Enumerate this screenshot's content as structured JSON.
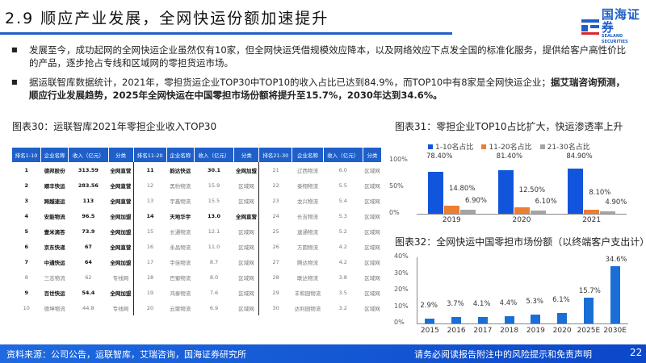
{
  "header": {
    "title": "2.9 顺应产业发展，全网快运份额加速提升",
    "logo_cn": "国海证券",
    "logo_en": "SEALAND SECURITIES",
    "accent_color": "#1f5fc9"
  },
  "bullets": [
    {
      "text": "发展至今，成功起网的全网快运企业虽然仅有10家，但全网快运凭借规模效应降本，以及网络效应下点发全国的标准化服务，提供给客户高性价比的产品，逐步抢占专线和区域网的零担货运市场。",
      "bold": ""
    },
    {
      "text": "据运联智库数据统计，2021年，零担货运企业TOP30中TOP10的收入占比已达到84.9%，而TOP10中有8家是全网快运企业；",
      "bold": "据艾瑞咨询预测，顺应行业发展趋势，2025年全网快运在中国零担市场份额将提升至15.7%，2030年达到34.6%。"
    }
  ],
  "table_caption": "图表30：运联智库2021年零担企业收入TOP30",
  "table": {
    "headers": [
      "排名1-10",
      "企业名称",
      "收入（亿元）",
      "分类",
      "排名11-20",
      "企业名称",
      "收入（亿元）",
      "分类",
      "排名21-30",
      "企业名称",
      "收入（亿元）",
      "分类"
    ],
    "rows": [
      [
        [
          "1",
          "德邦股份",
          "313.59",
          "全网直营"
        ],
        [
          "11",
          "韵达快运",
          "30.1",
          "全网加盟"
        ],
        [
          "21",
          "辽西物流",
          "6.0",
          "区域网"
        ]
      ],
      [
        [
          "2",
          "顺丰快运",
          "283.56",
          "全网直营"
        ],
        [
          "12",
          "黑豹物流",
          "15.9",
          "区域网"
        ],
        [
          "22",
          "泰翔物流",
          "5.5",
          "区域网"
        ]
      ],
      [
        [
          "3",
          "跨越速运",
          "113",
          "全网直营"
        ],
        [
          "13",
          "宇鑫物流",
          "15.5",
          "区域网"
        ],
        [
          "23",
          "龙兴物流",
          "5.4",
          "区域网"
        ]
      ],
      [
        [
          "4",
          "安能物流",
          "96.5",
          "全网加盟"
        ],
        [
          "14",
          "天地华宇",
          "13.0",
          "全网直营"
        ],
        [
          "24",
          "长吉物流",
          "5.3",
          "区域网"
        ]
      ],
      [
        [
          "5",
          "壹米滴答",
          "73.9",
          "全网加盟"
        ],
        [
          "15",
          "长通物流",
          "12.1",
          "区域网"
        ],
        [
          "25",
          "速通物流",
          "5.2",
          "区域网"
        ]
      ],
      [
        [
          "6",
          "京东快递",
          "67",
          "全网直营"
        ],
        [
          "16",
          "永昌物流",
          "11.0",
          "区域网"
        ],
        [
          "26",
          "方圆物流",
          "4.2",
          "区域网"
        ]
      ],
      [
        [
          "7",
          "中通快运",
          "64",
          "全网加盟"
        ],
        [
          "17",
          "宇佳物流",
          "8.7",
          "区域网"
        ],
        [
          "27",
          "腾达物流",
          "4.2",
          "区域网"
        ]
      ],
      [
        [
          "8",
          "三志物流",
          "62",
          "专线网"
        ],
        [
          "18",
          "巴蜀物流",
          "8.0",
          "区域网"
        ],
        [
          "28",
          "联达物流",
          "3.8",
          "区域网"
        ]
      ],
      [
        [
          "9",
          "百世快运",
          "54.4",
          "全网加盟"
        ],
        [
          "19",
          "鸿泰物流",
          "7.6",
          "区域网"
        ],
        [
          "29",
          "丰和园物流",
          "3.5",
          "区域网"
        ]
      ],
      [
        [
          "10",
          "德坤物流",
          "44.8",
          "专线网"
        ],
        [
          "20",
          "云聚物流",
          "6.9",
          "区域网"
        ],
        [
          "30",
          "达利园物流",
          "3.2",
          "区域网"
        ]
      ]
    ]
  },
  "chart_data": [
    {
      "type": "bar",
      "title": "图表31：零担企业TOP10占比扩大，快运渗透率上升",
      "categories": [
        "2019",
        "2020",
        "2021"
      ],
      "series": [
        {
          "name": "1-10名占比",
          "color": "#1155dd",
          "values": [
            78.4,
            81.4,
            84.9
          ],
          "labels": [
            "78.40%",
            "81.40%",
            "84.90%"
          ]
        },
        {
          "name": "11-20名占比",
          "color": "#ed7d31",
          "values": [
            14.8,
            12.5,
            8.1
          ],
          "labels": [
            "14.80%",
            "12.50%",
            "8.10%"
          ]
        },
        {
          "name": "21-30名占比",
          "color": "#a5a5a5",
          "values": [
            6.9,
            6.1,
            4.9
          ],
          "labels": [
            "6.90%",
            "6.10%",
            "4.90%"
          ]
        }
      ],
      "yticks": [
        "0%",
        "50%",
        "100%"
      ],
      "ylim": [
        0,
        100
      ],
      "legend_position": "top"
    },
    {
      "type": "bar",
      "title": "图表32：全网快运中国零担市场份额（以终端客户支出计）",
      "categories": [
        "2015",
        "2016",
        "2017",
        "2018",
        "2019",
        "2020",
        "2025E",
        "2030E"
      ],
      "values": [
        2.9,
        3.7,
        4.1,
        4.4,
        5.3,
        6.1,
        15.7,
        34.6
      ],
      "labels": [
        "2.9%",
        "3.7%",
        "4.1%",
        "4.4%",
        "5.3%",
        "6.1%",
        "15.7%",
        "34.6%"
      ],
      "color": "#1a6fd6",
      "yticks": [
        "0%",
        "10%",
        "20%",
        "30%",
        "40%"
      ],
      "ylim": [
        0,
        40
      ]
    }
  ],
  "footer": {
    "source": "资料来源：公司公告，运联智库，艾瑞咨询，国海证券研究所",
    "disclaimer": "请务必阅读报告附注中的风险提示和免责声明",
    "page": "22"
  }
}
